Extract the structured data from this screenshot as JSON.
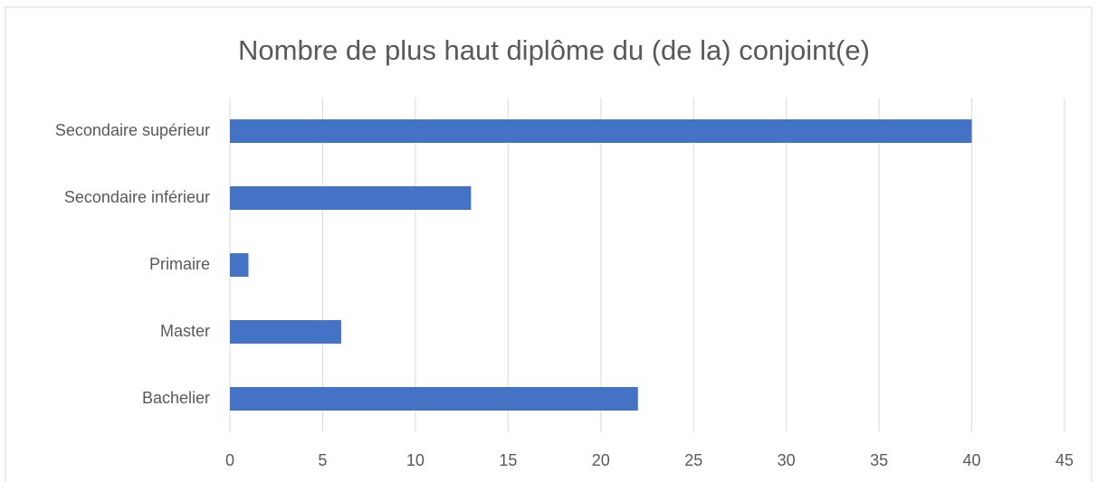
{
  "chart_data": {
    "type": "bar",
    "orientation": "horizontal",
    "title": "Nombre de plus haut diplôme du (de la) conjoint(e)",
    "categories": [
      "Secondaire supérieur",
      "Secondaire inférieur",
      "Primaire",
      "Master",
      "Bachelier"
    ],
    "values": [
      40,
      13,
      1,
      6,
      22
    ],
    "color": "#4472c4",
    "xlim": [
      0,
      45
    ],
    "xticks": [
      0,
      5,
      10,
      15,
      20,
      25,
      30,
      35,
      40,
      45
    ],
    "grid": true
  }
}
